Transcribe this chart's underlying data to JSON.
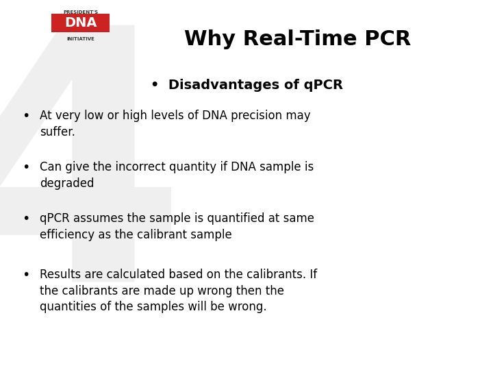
{
  "title": "Why Real-Time PCR",
  "subtitle": "Disadvantages of qPCR",
  "bullet_points": [
    "At very low or high levels of DNA precision may\nsuffer.",
    "Can give the incorrect quantity if DNA sample is\ndegraded",
    "qPCR assumes the sample is quantified at same\nefficiency as the calibrant sample",
    "Results are calculated based on the calibrants. If\nthe calibrants are made up wrong then the\nquantities of the samples will be wrong."
  ],
  "bg_color": "#ffffff",
  "title_color": "#000000",
  "subtitle_color": "#000000",
  "bullet_color": "#000000",
  "logo_bar_color": "#cc2222",
  "logo_text_color": "#ffffff",
  "title_fontsize": 22,
  "subtitle_fontsize": 14,
  "bullet_fontsize": 12,
  "logo_label_top": "PRESIDENT'S",
  "logo_label_main": "DNA",
  "logo_label_bottom": "INITIATIVE",
  "watermark_char": "4",
  "watermark_color": "#e0e0e0",
  "watermark_alpha": 0.5
}
